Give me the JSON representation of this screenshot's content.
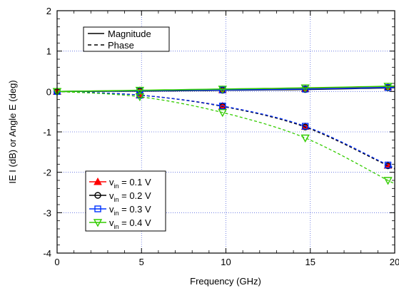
{
  "chart_data": {
    "type": "line",
    "title": "",
    "xlabel": "Frequency (GHz)",
    "ylabel": "IE I (dB) or Angle E (deg)",
    "xlim": [
      0,
      20
    ],
    "ylim": [
      -4,
      2
    ],
    "x_ticks": [
      0,
      5,
      10,
      15,
      20
    ],
    "x_tick_labels": [
      "0",
      "5",
      "10",
      "15",
      "20"
    ],
    "y_ticks": [
      -4,
      -3,
      -2,
      -1,
      0,
      1,
      2
    ],
    "y_tick_labels": [
      "-4",
      "-3",
      "-2",
      "-1",
      "0",
      "1",
      "2"
    ],
    "grid": true,
    "style_legend": [
      {
        "label": "Magnitude",
        "dash": "solid"
      },
      {
        "label": "Phase",
        "dash": "dashed"
      }
    ],
    "series_legend_position": "bottom-left",
    "series": [
      {
        "name": "v_in = 0.1 V",
        "name_base": "v",
        "name_sub": "in",
        "name_rest": " = 0.1 V",
        "color": "#ff0000",
        "marker": "triangle-up",
        "x": [
          0,
          4.9,
          9.8,
          14.7,
          19.6
        ],
        "magnitude": [
          0,
          0.02,
          0.04,
          0.07,
          0.11
        ],
        "phase": [
          0,
          -0.09,
          -0.36,
          -0.87,
          -1.83
        ]
      },
      {
        "name": "v_in = 0.2 V",
        "name_base": "v",
        "name_sub": "in",
        "name_rest": " = 0.2 V",
        "color": "#000000",
        "marker": "circle",
        "x": [
          0,
          4.9,
          9.8,
          14.7,
          19.6
        ],
        "magnitude": [
          0,
          0.01,
          0.03,
          0.05,
          0.09
        ],
        "phase": [
          0,
          -0.09,
          -0.37,
          -0.88,
          -1.84
        ]
      },
      {
        "name": "v_in = 0.3 V",
        "name_base": "v",
        "name_sub": "in",
        "name_rest": " = 0.3 V",
        "color": "#0033ff",
        "marker": "square",
        "x": [
          0,
          4.9,
          9.8,
          14.7,
          19.6
        ],
        "magnitude": [
          0,
          0.02,
          0.04,
          0.06,
          0.1
        ],
        "phase": [
          0,
          -0.09,
          -0.36,
          -0.86,
          -1.82
        ]
      },
      {
        "name": "v_in = 0.4 V",
        "name_base": "v",
        "name_sub": "in",
        "name_rest": " = 0.4 V",
        "color": "#33cc00",
        "marker": "triangle-down",
        "x": [
          0,
          4.9,
          9.8,
          14.7,
          19.6
        ],
        "magnitude": [
          0,
          0.03,
          0.06,
          0.09,
          0.13
        ],
        "phase": [
          0,
          -0.13,
          -0.52,
          -1.15,
          -2.2
        ]
      }
    ]
  }
}
